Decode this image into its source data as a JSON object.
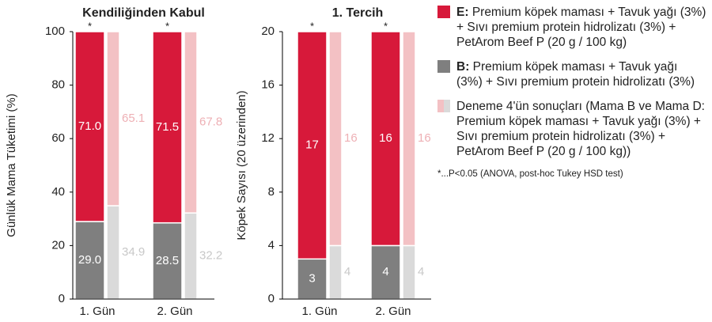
{
  "charts": [
    {
      "chart_data": {
        "type": "bar",
        "stacked": true,
        "title": "Kendiliğinden Kabul",
        "y_label": "Günlük Mama Tüketimi (%)",
        "categories": [
          "1. Gün",
          "2. Gün"
        ],
        "ylim": [
          0,
          100
        ],
        "yticks": [
          0,
          20,
          40,
          60,
          80,
          100
        ],
        "stars": [
          "*",
          "*"
        ],
        "series": [
          {
            "group": 0,
            "color": "#7f7f7f",
            "label_color": "#ffffff",
            "values": [
              29.0,
              28.5
            ],
            "value_labels": [
              "29.0",
              "28.5"
            ]
          },
          {
            "group": 0,
            "color": "#d7193a",
            "label_color": "#ffffff",
            "values": [
              71.0,
              71.5
            ],
            "value_labels": [
              "71.0",
              "71.5"
            ]
          },
          {
            "group": 1,
            "color": "#dadada",
            "label_color": "#c8c8c8",
            "values": [
              34.9,
              32.2
            ],
            "value_labels": [
              "34.9",
              "32.2"
            ]
          },
          {
            "group": 1,
            "color": "#f3c1c4",
            "label_color": "#eeb0b5",
            "values": [
              65.1,
              67.8
            ],
            "value_labels": [
              "65.1",
              "67.8"
            ]
          }
        ]
      }
    },
    {
      "chart_data": {
        "type": "bar",
        "stacked": true,
        "title": "1. Tercih",
        "y_label": "Köpek Sayısı (20 üzerinden)",
        "categories": [
          "1. Gün",
          "2. Gün"
        ],
        "ylim": [
          0,
          20
        ],
        "yticks": [
          0,
          4,
          8,
          12,
          16,
          20
        ],
        "stars": [
          "*",
          "*"
        ],
        "series": [
          {
            "group": 0,
            "color": "#7f7f7f",
            "label_color": "#ffffff",
            "values": [
              3,
              4
            ]
          },
          {
            "group": 0,
            "color": "#d7193a",
            "label_color": "#ffffff",
            "values": [
              17,
              16
            ]
          },
          {
            "group": 1,
            "color": "#dadada",
            "label_color": "#c8c8c8",
            "values": [
              4,
              4
            ]
          },
          {
            "group": 1,
            "color": "#f3c1c4",
            "label_color": "#eeb0b5",
            "values": [
              16,
              16
            ]
          }
        ]
      }
    }
  ],
  "legend": [
    {
      "prefix": "E:",
      "text": "Premium köpek maması + Tavuk yağı (3%) + Sıvı premium protein hidrolizatı (3%) + PetArom Beef P (20 g / 100 kg)",
      "colors": [
        "#d7193a"
      ]
    },
    {
      "prefix": "B:",
      "text": "Premium köpek maması + Tavuk yağı (3%) + Sıvı premium protein hidrolizatı (3%)",
      "colors": [
        "#7f7f7f"
      ]
    },
    {
      "text": "Deneme 4'ün sonuçları (Mama B ve Mama D: Premium köpek maması + Tavuk yağı (3%) + Sıvı premium protein hidrolizatı (3%) + PetArom Beef P (20 g / 100 kg))",
      "colors": [
        "#f3c1c4",
        "#dadada"
      ]
    }
  ],
  "footnote": "*...P<0.05 (ANOVA, post-hoc Tukey HSD test)"
}
